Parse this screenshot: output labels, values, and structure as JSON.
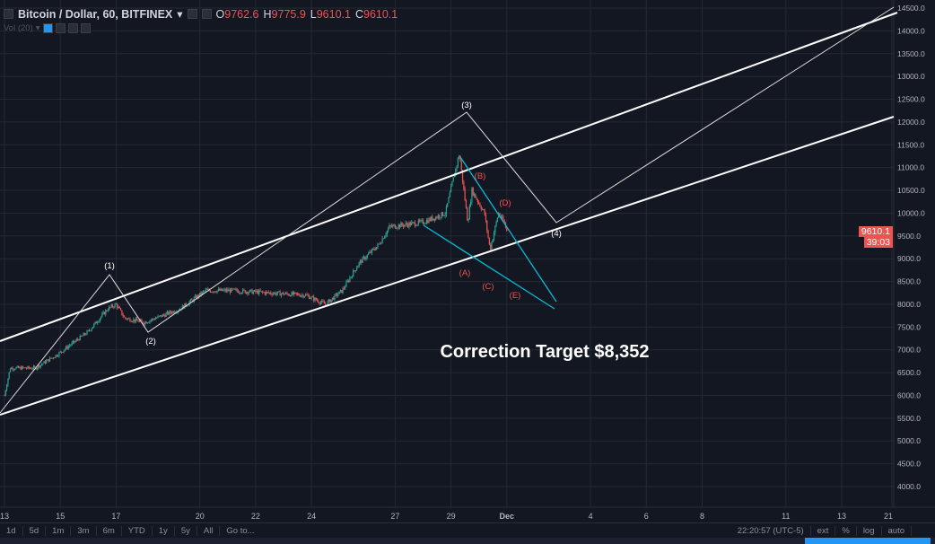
{
  "header": {
    "symbol": "Bitcoin / Dollar, 60, BITFINEX",
    "o_label": "O",
    "o": "9762.6",
    "h_label": "H",
    "h": "9775.9",
    "l_label": "L",
    "l": "9610.1",
    "c_label": "C",
    "c": "9610.1",
    "vol": "Vol (20)"
  },
  "price_tag": "9610.1",
  "time_tag": "39:03",
  "toolbar": {
    "ranges": [
      "1d",
      "5d",
      "1m",
      "3m",
      "6m",
      "YTD",
      "1y",
      "5y",
      "All",
      "Go to..."
    ],
    "clock": "22:20:57 (UTC-5)",
    "options": [
      "ext",
      "%",
      "log",
      "auto"
    ]
  },
  "annotation": "Correction Target $8,352",
  "colors": {
    "bg": "#131722",
    "up": "#26a69a",
    "down": "#ef5350",
    "teal": "#00bcd4",
    "grid": "#242832"
  },
  "chart_data": {
    "type": "candlestick",
    "title": "Bitcoin / Dollar, 60, BITFINEX",
    "y_ticks": [
      4000,
      4500,
      5000,
      5500,
      6000,
      6500,
      7000,
      7500,
      8000,
      8500,
      9000,
      9500,
      10000,
      10500,
      11000,
      11500,
      12000,
      12500,
      13000,
      13500,
      14000,
      14500
    ],
    "ylim": [
      4000,
      14500
    ],
    "x_ticks": [
      {
        "day": 0,
        "label": "13"
      },
      {
        "day": 2,
        "label": "15"
      },
      {
        "day": 4,
        "label": "17"
      },
      {
        "day": 7,
        "label": "20"
      },
      {
        "day": 9,
        "label": "22"
      },
      {
        "day": 11,
        "label": "24"
      },
      {
        "day": 14,
        "label": "27"
      },
      {
        "day": 16,
        "label": "29"
      },
      {
        "day": 18,
        "label": "Dec"
      },
      {
        "day": 21,
        "label": "4"
      },
      {
        "day": 23,
        "label": "6"
      },
      {
        "day": 25,
        "label": "8"
      },
      {
        "day": 28,
        "label": "11"
      },
      {
        "day": 30,
        "label": "13"
      },
      {
        "day": 31.8,
        "label": "21"
      }
    ],
    "price_path": [
      [
        0,
        6000
      ],
      [
        0.2,
        6600
      ],
      [
        1.1,
        6600
      ],
      [
        1.9,
        6900
      ],
      [
        3,
        7400
      ],
      [
        3.7,
        7900
      ],
      [
        4,
        8000
      ],
      [
        4.3,
        7700
      ],
      [
        5,
        7600
      ],
      [
        6.3,
        7900
      ],
      [
        7.2,
        8300
      ],
      [
        8.2,
        8300
      ],
      [
        9.5,
        8250
      ],
      [
        10.8,
        8200
      ],
      [
        11.5,
        8000
      ],
      [
        12.1,
        8300
      ],
      [
        12.7,
        8900
      ],
      [
        13.4,
        9300
      ],
      [
        13.8,
        9700
      ],
      [
        15,
        9800
      ],
      [
        15.8,
        10000
      ],
      [
        16.1,
        10800
      ],
      [
        16.3,
        11300
      ],
      [
        16.6,
        9800
      ],
      [
        16.75,
        10500
      ],
      [
        17.2,
        10000
      ],
      [
        17.4,
        9200
      ],
      [
        17.7,
        10000
      ],
      [
        17.9,
        9800
      ],
      [
        18,
        9610
      ]
    ],
    "wave_labels": [
      "(1)",
      "(2)",
      "(3)",
      "(4)"
    ],
    "correction_labels": [
      "(A)",
      "(B)",
      "(C)",
      "(D)",
      "(E)"
    ],
    "last_price": 9610.1
  }
}
